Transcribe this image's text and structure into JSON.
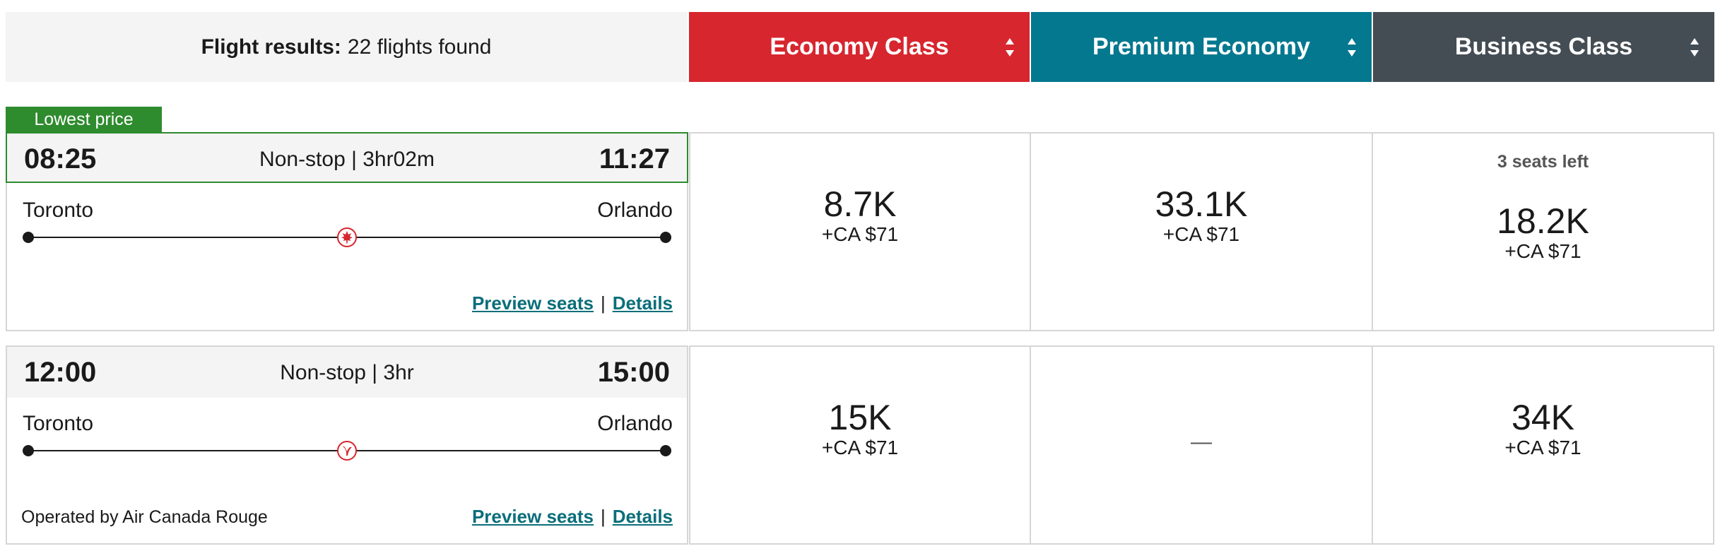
{
  "header": {
    "summary_label": "Flight results:",
    "summary_count": "22 flights found",
    "cabins": [
      {
        "label": "Economy Class",
        "color": "#d7262e"
      },
      {
        "label": "Premium Economy",
        "color": "#04788f"
      },
      {
        "label": "Business Class",
        "color": "#454d54"
      }
    ]
  },
  "badge": {
    "label": "Lowest price",
    "color": "#2e8b2e"
  },
  "flights": [
    {
      "departure_time": "08:25",
      "arrival_time": "11:27",
      "duration": "Non-stop | 3hr02m",
      "origin": "Toronto",
      "destination": "Orlando",
      "airline_icon": "air-canada-maple-leaf-icon",
      "preview_label": "Preview seats",
      "separator": "|",
      "details_label": "Details",
      "operated_by": "",
      "fares": [
        {
          "points": "8.7K",
          "taxes": "+CA $71",
          "seats_left": ""
        },
        {
          "points": "33.1K",
          "taxes": "+CA $71",
          "seats_left": ""
        },
        {
          "points": "18.2K",
          "taxes": "+CA $71",
          "seats_left": "3 seats left"
        }
      ]
    },
    {
      "departure_time": "12:00",
      "arrival_time": "15:00",
      "duration": "Non-stop | 3hr",
      "origin": "Toronto",
      "destination": "Orlando",
      "airline_icon": "air-canada-rouge-icon",
      "preview_label": "Preview seats",
      "separator": "|",
      "details_label": "Details",
      "operated_by": "Operated by Air Canada Rouge",
      "fares": [
        {
          "points": "15K",
          "taxes": "+CA $71",
          "seats_left": ""
        },
        {
          "points": "",
          "taxes": "",
          "unavailable": "—"
        },
        {
          "points": "34K",
          "taxes": "+CA $71",
          "seats_left": ""
        }
      ]
    }
  ]
}
